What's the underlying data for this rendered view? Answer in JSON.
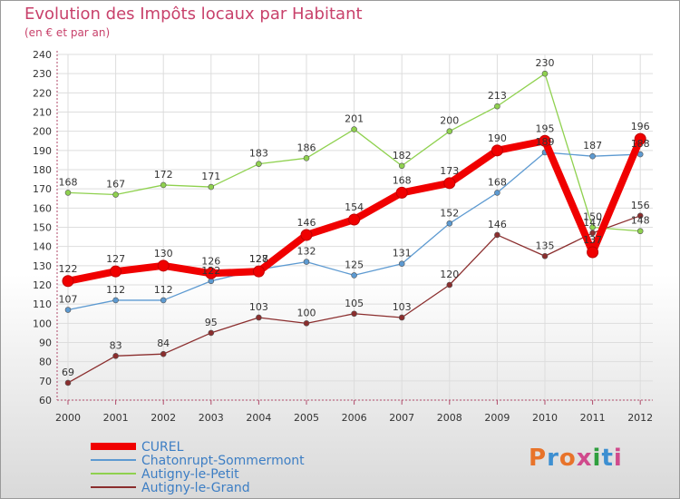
{
  "header": {
    "title": "Evolution des Impôts locaux par Habitant",
    "subtitle": "(en € et par an)"
  },
  "logo": {
    "text": "Proxiti",
    "colors": [
      "#e8732a",
      "#3d8fd1",
      "#e8732a",
      "#d04a8c",
      "#2f9f3e",
      "#3d8fd1",
      "#d04a8c"
    ]
  },
  "chart_data": {
    "type": "line",
    "title": "Evolution des Impôts locaux par Habitant",
    "subtitle": "(en € et par an)",
    "xlabel": "",
    "ylabel": "",
    "x": [
      "2000",
      "2001",
      "2002",
      "2003",
      "2004",
      "2005",
      "2006",
      "2007",
      "2008",
      "2009",
      "2010",
      "2011",
      "2012"
    ],
    "y_ticks": [
      60,
      70,
      80,
      90,
      100,
      110,
      120,
      130,
      140,
      150,
      160,
      170,
      180,
      190,
      200,
      210,
      220,
      230,
      240
    ],
    "ylim": [
      60,
      240
    ],
    "grid": true,
    "legend_position": "bottom-left",
    "series": [
      {
        "name": "Autigny-le-Grand",
        "color": "#8b2e2e",
        "values": [
          69,
          83,
          84,
          95,
          103,
          100,
          105,
          103,
          120,
          146,
          135,
          147,
          156
        ],
        "labels": [
          "69",
          "83",
          "84",
          "95",
          "103",
          "100",
          "105",
          "103",
          "120",
          "146",
          "135",
          "147",
          "156"
        ]
      },
      {
        "name": "Autigny-le-Petit",
        "color": "#8fd14f",
        "values": [
          168,
          167,
          172,
          171,
          183,
          186,
          201,
          182,
          200,
          213,
          230,
          150,
          148
        ],
        "labels": [
          "168",
          "167",
          "172",
          "171",
          "183",
          "186",
          "201",
          "182",
          "200",
          "213",
          "230",
          "150",
          "148"
        ]
      },
      {
        "name": "Chatonrupt-Sommermont",
        "color": "#5d9ad1",
        "values": [
          107,
          112,
          112,
          122,
          128,
          132,
          125,
          131,
          152,
          168,
          189,
          187,
          188
        ],
        "labels": [
          "107",
          "112",
          "112",
          "122",
          "128",
          "132",
          "125",
          "131",
          "152",
          "168",
          "189",
          "187",
          "188"
        ]
      },
      {
        "name": "CUREL",
        "color": "#f00000",
        "values": [
          122,
          127,
          130,
          126,
          127,
          146,
          154,
          168,
          173,
          190,
          195,
          137,
          196
        ],
        "labels": [
          "122",
          "127",
          "130",
          "126",
          "127",
          "146",
          "154",
          "168",
          "173",
          "190",
          "195",
          "137",
          "196"
        ]
      }
    ],
    "legend": [
      "CUREL",
      "Chatonrupt-Sommermont",
      "Autigny-le-Petit",
      "Autigny-le-Grand"
    ]
  }
}
